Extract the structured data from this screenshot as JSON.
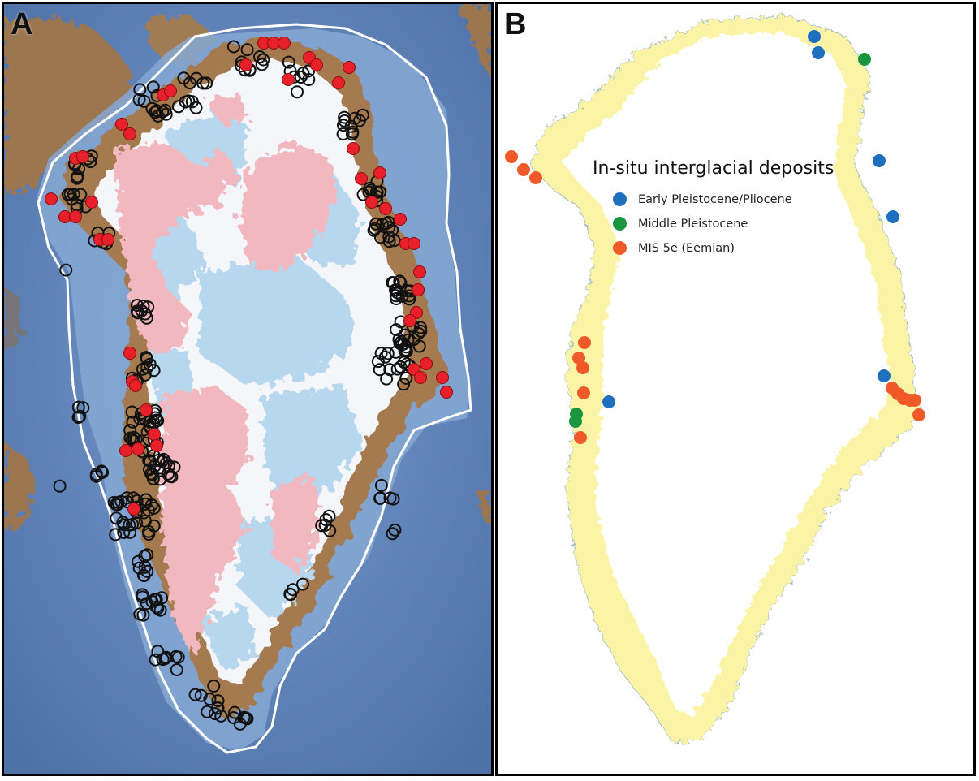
{
  "panel_a": {
    "letter": "A"
  },
  "panel_b": {
    "letter": "B",
    "legend": {
      "title": "In-situ interglacial deposits",
      "items": [
        {
          "label": "Early Pleistocene/Pliocene",
          "color": "#1f6fbf"
        },
        {
          "label": "Middle Pleistocene",
          "color": "#1a9641"
        },
        {
          "label": "MIS 5e (Eemian)",
          "color": "#f05a28"
        }
      ]
    }
  },
  "colors": {
    "ocean": "#5f82b8",
    "shelf": "#7fa3cf",
    "land_rock": "#a57a4f",
    "ice_white": "#f5f7fa",
    "ice_lightblue": "#b6d7ee",
    "ice_pink": "#f2b8c0",
    "coast_yellow": "#fbf4a6",
    "outline": "#ffffff",
    "red_site": "#e8202a",
    "open_site": "#111111"
  }
}
